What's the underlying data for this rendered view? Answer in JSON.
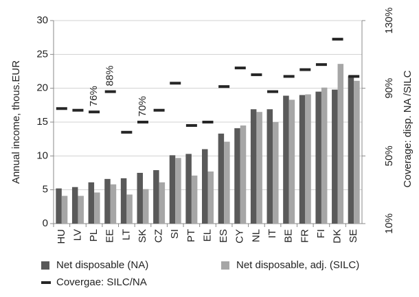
{
  "chart_data": {
    "type": "bar",
    "categories": [
      "HU",
      "LV",
      "PL",
      "EE",
      "LT",
      "SK",
      "CZ",
      "SI",
      "PT",
      "EL",
      "ES",
      "CY",
      "NL",
      "IT",
      "BE",
      "FR",
      "FI",
      "DK",
      "SE"
    ],
    "y_label": "Annual income, thous.EUR",
    "y2_label": "Coverage: disp. NA /SILC",
    "series": [
      {
        "name": "Net disposable (NA)",
        "color": "#595959",
        "values": [
          5.2,
          5.4,
          6.1,
          6.6,
          6.7,
          7.5,
          7.9,
          10.1,
          10.3,
          11.0,
          13.3,
          14.1,
          16.9,
          16.9,
          18.9,
          19.0,
          19.5,
          19.8,
          21.8
        ]
      },
      {
        "name": "Net disposable, adj. (SILC)",
        "color": "#a6a6a6",
        "values": [
          4.1,
          4.1,
          4.6,
          5.8,
          4.3,
          5.1,
          6.1,
          9.7,
          7.1,
          7.7,
          12.1,
          14.5,
          16.5,
          15.0,
          18.3,
          19.1,
          20.1,
          23.6,
          21.1
        ]
      },
      {
        "name": "Covergae: SILC/NA",
        "color": "#262626",
        "axis": "y2",
        "style": "dash",
        "values": [
          78,
          77,
          76,
          88,
          64,
          70,
          77,
          93,
          68,
          70,
          91,
          102,
          98,
          88,
          97,
          101,
          104,
          119,
          97
        ],
        "value_labels": [
          null,
          null,
          "76%",
          "88%",
          null,
          "70%",
          null,
          null,
          null,
          null,
          null,
          null,
          null,
          null,
          null,
          null,
          null,
          null,
          null
        ]
      }
    ],
    "ylim": [
      0,
      30
    ],
    "yticks": [
      0,
      5,
      10,
      15,
      20,
      25,
      30
    ],
    "y2lim": [
      10,
      130
    ],
    "y2ticks": [
      {
        "value": 10,
        "label": "10%"
      },
      {
        "value": 50,
        "label": "50%"
      },
      {
        "value": 90,
        "label": "90%"
      },
      {
        "value": 130,
        "label": "130%"
      }
    ],
    "grid": true,
    "legend": "bottom"
  }
}
